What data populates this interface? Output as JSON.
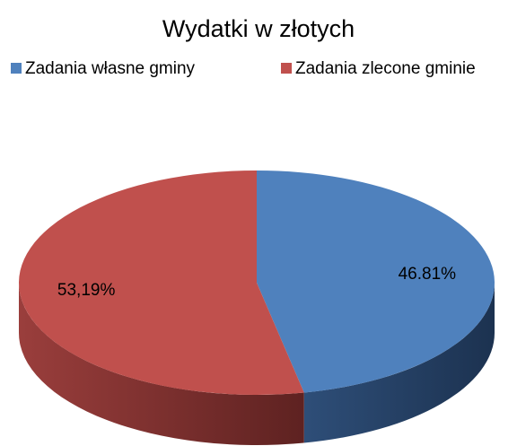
{
  "chart_data": {
    "type": "pie",
    "title": "Wydatki w złotych",
    "categories": [
      "Zadania własne gminy",
      "Zadania zlecone gminie"
    ],
    "values": [
      46.81,
      53.19
    ],
    "value_labels": [
      "46.81%",
      "53,19%"
    ],
    "colors": [
      "#4f81bd",
      "#c0504d"
    ],
    "legend": "top"
  }
}
